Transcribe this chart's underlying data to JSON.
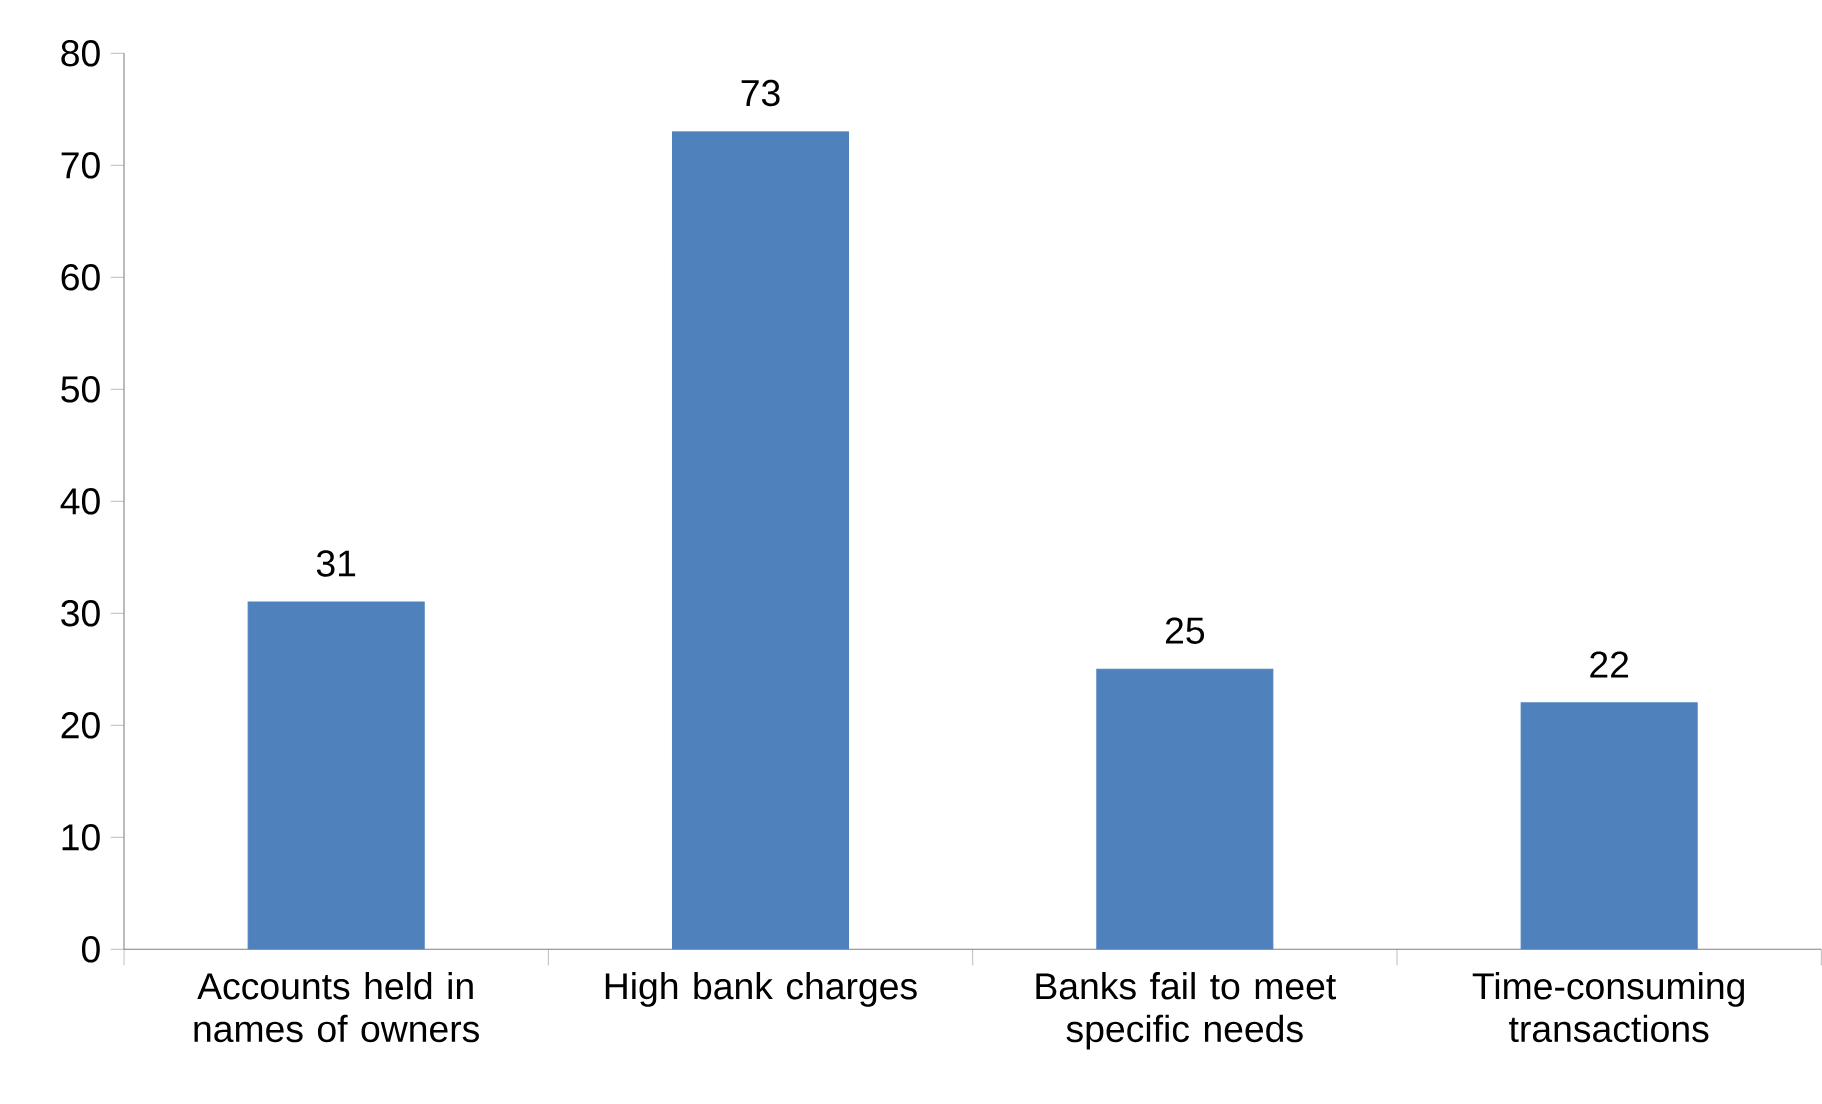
{
  "chart_data": {
    "type": "bar",
    "categories": [
      "Accounts held in names of owners",
      "High bank charges",
      "Banks fail to meet specific needs",
      "Time-consuming transactions"
    ],
    "values": [
      31,
      73,
      25,
      22
    ],
    "color": "#4f81bd",
    "ylim": [
      0,
      80
    ],
    "yticks": [
      0,
      10,
      20,
      30,
      40,
      50,
      60,
      70,
      80
    ],
    "data_labels": true
  }
}
